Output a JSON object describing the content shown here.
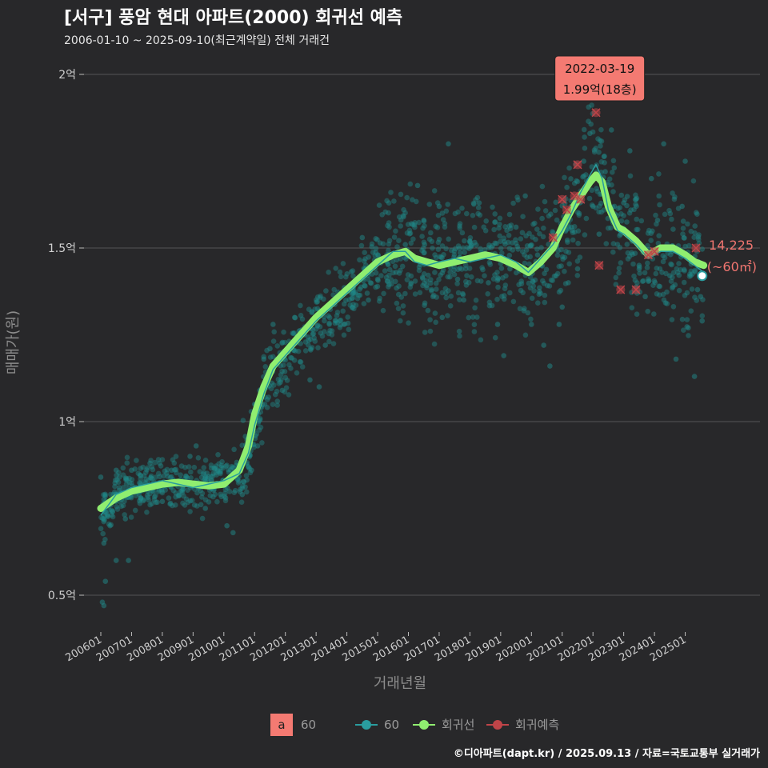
{
  "title": "[서구] 풍암 현대 아파트(2000) 회귀선 예측",
  "subtitle": "2006-01-10 ~ 2025-09-10(최근계약일) 전체 거래건",
  "caption": "©디아파트(dapt.kr) / 2025.09.13 / 자료=국토교통부 실거래가",
  "colors": {
    "background": "#28282a",
    "grid": "#555555",
    "scatter": "#1f8a8a",
    "trend_thin": "#2a9d9f",
    "regression": "#90ee70",
    "prediction": "#c04448",
    "label_bg": "#f47a72",
    "accent_text": "#f07570"
  },
  "chart_data": {
    "type": "scatter",
    "title": "[서구] 풍암 현대 아파트(2000) 회귀선 예측",
    "xlabel": "거래년월",
    "ylabel": "매매가(원)",
    "xlim": [
      2005.9,
      2025.9
    ],
    "ylim": [
      0.42,
      2.07
    ],
    "y_unit": "억",
    "grid": true,
    "x_ticks": [
      {
        "value": 2006.0,
        "label": "200601"
      },
      {
        "value": 2007.0,
        "label": "200701"
      },
      {
        "value": 2008.0,
        "label": "200801"
      },
      {
        "value": 2009.0,
        "label": "200901"
      },
      {
        "value": 2010.0,
        "label": "201001"
      },
      {
        "value": 2011.0,
        "label": "201101"
      },
      {
        "value": 2012.0,
        "label": "201201"
      },
      {
        "value": 2013.0,
        "label": "201301"
      },
      {
        "value": 2014.0,
        "label": "201401"
      },
      {
        "value": 2015.0,
        "label": "201501"
      },
      {
        "value": 2016.0,
        "label": "201601"
      },
      {
        "value": 2017.0,
        "label": "201701"
      },
      {
        "value": 2018.0,
        "label": "201801"
      },
      {
        "value": 2019.0,
        "label": "201901"
      },
      {
        "value": 2020.0,
        "label": "202001"
      },
      {
        "value": 2021.0,
        "label": "202101"
      },
      {
        "value": 2022.0,
        "label": "202201"
      },
      {
        "value": 2023.0,
        "label": "202301"
      },
      {
        "value": 2024.0,
        "label": "202401"
      },
      {
        "value": 2025.0,
        "label": "202501"
      }
    ],
    "y_ticks": [
      {
        "value": 0.5,
        "label": "0.5억"
      },
      {
        "value": 1.0,
        "label": "1억"
      },
      {
        "value": 1.5,
        "label": "1.5억"
      },
      {
        "value": 2.0,
        "label": "2억"
      }
    ],
    "series": [
      {
        "name": "회귀선",
        "type": "line",
        "points": [
          [
            2006.0,
            0.75
          ],
          [
            2006.5,
            0.78
          ],
          [
            2007.0,
            0.8
          ],
          [
            2007.5,
            0.81
          ],
          [
            2008.0,
            0.82
          ],
          [
            2008.5,
            0.825
          ],
          [
            2009.0,
            0.82
          ],
          [
            2009.5,
            0.815
          ],
          [
            2010.0,
            0.82
          ],
          [
            2010.5,
            0.86
          ],
          [
            2010.8,
            0.93
          ],
          [
            2011.0,
            1.02
          ],
          [
            2011.3,
            1.1
          ],
          [
            2011.6,
            1.16
          ],
          [
            2012.0,
            1.2
          ],
          [
            2012.5,
            1.25
          ],
          [
            2013.0,
            1.3
          ],
          [
            2013.5,
            1.34
          ],
          [
            2014.0,
            1.38
          ],
          [
            2014.5,
            1.42
          ],
          [
            2015.0,
            1.46
          ],
          [
            2015.5,
            1.48
          ],
          [
            2015.9,
            1.49
          ],
          [
            2016.2,
            1.47
          ],
          [
            2016.6,
            1.46
          ],
          [
            2017.0,
            1.45
          ],
          [
            2017.5,
            1.46
          ],
          [
            2018.0,
            1.47
          ],
          [
            2018.5,
            1.48
          ],
          [
            2019.0,
            1.47
          ],
          [
            2019.5,
            1.45
          ],
          [
            2019.9,
            1.43
          ],
          [
            2020.3,
            1.46
          ],
          [
            2020.7,
            1.5
          ],
          [
            2021.0,
            1.56
          ],
          [
            2021.3,
            1.61
          ],
          [
            2021.6,
            1.65
          ],
          [
            2021.9,
            1.69
          ],
          [
            2022.1,
            1.71
          ],
          [
            2022.3,
            1.69
          ],
          [
            2022.5,
            1.62
          ],
          [
            2022.8,
            1.56
          ],
          [
            2023.0,
            1.55
          ],
          [
            2023.4,
            1.52
          ],
          [
            2023.8,
            1.48
          ],
          [
            2024.2,
            1.5
          ],
          [
            2024.6,
            1.5
          ],
          [
            2025.0,
            1.48
          ],
          [
            2025.3,
            1.46
          ],
          [
            2025.6,
            1.45
          ]
        ]
      },
      {
        "name": "60",
        "type": "line-thin",
        "points": [
          [
            2006.0,
            0.73
          ],
          [
            2006.5,
            0.79
          ],
          [
            2007.0,
            0.81
          ],
          [
            2007.5,
            0.82
          ],
          [
            2008.0,
            0.83
          ],
          [
            2008.5,
            0.82
          ],
          [
            2009.0,
            0.81
          ],
          [
            2009.5,
            0.82
          ],
          [
            2010.0,
            0.83
          ],
          [
            2010.5,
            0.85
          ],
          [
            2010.8,
            0.91
          ],
          [
            2011.0,
            0.99
          ],
          [
            2011.3,
            1.08
          ],
          [
            2011.6,
            1.15
          ],
          [
            2012.0,
            1.19
          ],
          [
            2012.5,
            1.24
          ],
          [
            2013.0,
            1.29
          ],
          [
            2013.5,
            1.33
          ],
          [
            2014.0,
            1.37
          ],
          [
            2014.5,
            1.41
          ],
          [
            2015.0,
            1.45
          ],
          [
            2015.5,
            1.49
          ],
          [
            2015.9,
            1.49
          ],
          [
            2016.2,
            1.46
          ],
          [
            2016.6,
            1.45
          ],
          [
            2017.0,
            1.46
          ],
          [
            2017.5,
            1.47
          ],
          [
            2018.0,
            1.46
          ],
          [
            2018.5,
            1.47
          ],
          [
            2019.0,
            1.48
          ],
          [
            2019.5,
            1.46
          ],
          [
            2019.9,
            1.43
          ],
          [
            2020.3,
            1.47
          ],
          [
            2020.7,
            1.51
          ],
          [
            2021.0,
            1.55
          ],
          [
            2021.3,
            1.6
          ],
          [
            2021.6,
            1.66
          ],
          [
            2021.9,
            1.71
          ],
          [
            2022.1,
            1.74
          ],
          [
            2022.3,
            1.7
          ],
          [
            2022.5,
            1.61
          ],
          [
            2022.8,
            1.55
          ],
          [
            2023.0,
            1.54
          ],
          [
            2023.4,
            1.51
          ],
          [
            2023.8,
            1.47
          ],
          [
            2024.2,
            1.49
          ],
          [
            2024.6,
            1.49
          ],
          [
            2025.0,
            1.47
          ],
          [
            2025.3,
            1.45
          ],
          [
            2025.6,
            1.43
          ]
        ]
      },
      {
        "name": "회귀예측",
        "type": "points",
        "points": [
          [
            2020.7,
            1.53
          ],
          [
            2021.0,
            1.64
          ],
          [
            2021.15,
            1.61
          ],
          [
            2021.4,
            1.65
          ],
          [
            2021.5,
            1.74
          ],
          [
            2021.6,
            1.64
          ],
          [
            2022.1,
            1.89
          ],
          [
            2022.2,
            1.45
          ],
          [
            2022.9,
            1.38
          ],
          [
            2023.4,
            1.38
          ],
          [
            2023.8,
            1.48
          ],
          [
            2024.0,
            1.49
          ],
          [
            2025.35,
            1.5
          ]
        ]
      },
      {
        "name": "60",
        "type": "scatter",
        "points": [
          [
            2006.0,
            0.84
          ],
          [
            2006.05,
            0.48
          ],
          [
            2006.1,
            0.47
          ],
          [
            2006.15,
            0.54
          ],
          [
            2006.1,
            0.65
          ],
          [
            2006.3,
            0.7
          ],
          [
            2006.5,
            0.6
          ],
          [
            2006.5,
            0.86
          ],
          [
            2006.8,
            0.72
          ],
          [
            2006.9,
            0.6
          ],
          [
            2007.0,
            0.86
          ],
          [
            2007.3,
            0.78
          ],
          [
            2007.6,
            0.88
          ],
          [
            2008.0,
            0.77
          ],
          [
            2008.3,
            0.86
          ],
          [
            2008.6,
            0.8
          ],
          [
            2008.9,
            0.9
          ],
          [
            2009.1,
            0.93
          ],
          [
            2009.4,
            0.75
          ],
          [
            2009.8,
            0.86
          ],
          [
            2010.1,
            0.7
          ],
          [
            2010.3,
            0.68
          ],
          [
            2010.6,
            0.79
          ],
          [
            2010.9,
            0.86
          ],
          [
            2011.0,
            1.05
          ],
          [
            2011.1,
            0.93
          ],
          [
            2011.3,
            1.18
          ],
          [
            2011.5,
            1.21
          ],
          [
            2011.6,
            1.28
          ],
          [
            2011.9,
            1.09
          ],
          [
            2012.1,
            1.2
          ],
          [
            2012.3,
            1.3
          ],
          [
            2012.6,
            1.25
          ],
          [
            2012.8,
            1.12
          ],
          [
            2013.1,
            1.1
          ],
          [
            2013.3,
            1.22
          ],
          [
            2013.6,
            1.35
          ],
          [
            2013.9,
            1.28
          ],
          [
            2014.2,
            1.38
          ],
          [
            2014.5,
            1.53
          ],
          [
            2014.7,
            1.35
          ],
          [
            2015.0,
            1.41
          ],
          [
            2015.3,
            1.46
          ],
          [
            2015.6,
            1.43
          ],
          [
            2015.9,
            1.51
          ],
          [
            2016.1,
            1.57
          ],
          [
            2016.3,
            1.68
          ],
          [
            2016.5,
            1.58
          ],
          [
            2016.8,
            1.36
          ],
          [
            2017.0,
            1.62
          ],
          [
            2017.1,
            1.3
          ],
          [
            2017.3,
            1.8
          ],
          [
            2017.6,
            1.41
          ],
          [
            2017.8,
            1.35
          ],
          [
            2018.0,
            1.52
          ],
          [
            2018.3,
            1.63
          ],
          [
            2018.6,
            1.4
          ],
          [
            2018.9,
            1.28
          ],
          [
            2019.1,
            1.19
          ],
          [
            2019.3,
            1.44
          ],
          [
            2019.5,
            1.56
          ],
          [
            2019.8,
            1.65
          ],
          [
            2020.0,
            1.28
          ],
          [
            2020.2,
            1.48
          ],
          [
            2020.4,
            1.22
          ],
          [
            2020.6,
            1.16
          ],
          [
            2020.8,
            1.42
          ],
          [
            2020.9,
            1.28
          ],
          [
            2021.0,
            1.33
          ],
          [
            2021.2,
            1.4
          ],
          [
            2021.3,
            1.56
          ],
          [
            2021.5,
            1.44
          ],
          [
            2021.7,
            1.75
          ],
          [
            2021.9,
            1.83
          ],
          [
            2022.0,
            1.62
          ],
          [
            2022.1,
            1.99
          ],
          [
            2022.2,
            1.54
          ],
          [
            2022.4,
            1.72
          ],
          [
            2022.6,
            1.84
          ],
          [
            2022.7,
            1.62
          ],
          [
            2022.9,
            1.54
          ],
          [
            2023.0,
            1.63
          ],
          [
            2023.2,
            1.78
          ],
          [
            2023.4,
            1.64
          ],
          [
            2023.5,
            1.45
          ],
          [
            2023.7,
            1.36
          ],
          [
            2023.9,
            1.7
          ],
          [
            2024.1,
            1.58
          ],
          [
            2024.3,
            1.8
          ],
          [
            2024.5,
            1.42
          ],
          [
            2024.7,
            1.18
          ],
          [
            2024.9,
            1.62
          ],
          [
            2025.0,
            1.75
          ],
          [
            2025.1,
            1.27
          ],
          [
            2025.2,
            1.46
          ],
          [
            2025.3,
            1.13
          ],
          [
            2025.4,
            1.38
          ],
          [
            2025.5,
            1.36
          ],
          [
            2025.55,
            1.29
          ]
        ]
      }
    ],
    "highlight_point": {
      "x": 2025.55,
      "y": 1.42
    },
    "annotations": [
      {
        "date": "2022-03-19",
        "value": "1.99억(18층)",
        "x": 2022.22,
        "y": 1.99
      },
      {
        "value": "14,225",
        "area": "(~60㎡)",
        "x": 2025.6,
        "y": 1.46
      }
    ],
    "legend": {
      "position": "bottom",
      "size_swatch": "a",
      "size_label": "60",
      "items": [
        "60",
        "회귀선",
        "회귀예측"
      ]
    }
  }
}
